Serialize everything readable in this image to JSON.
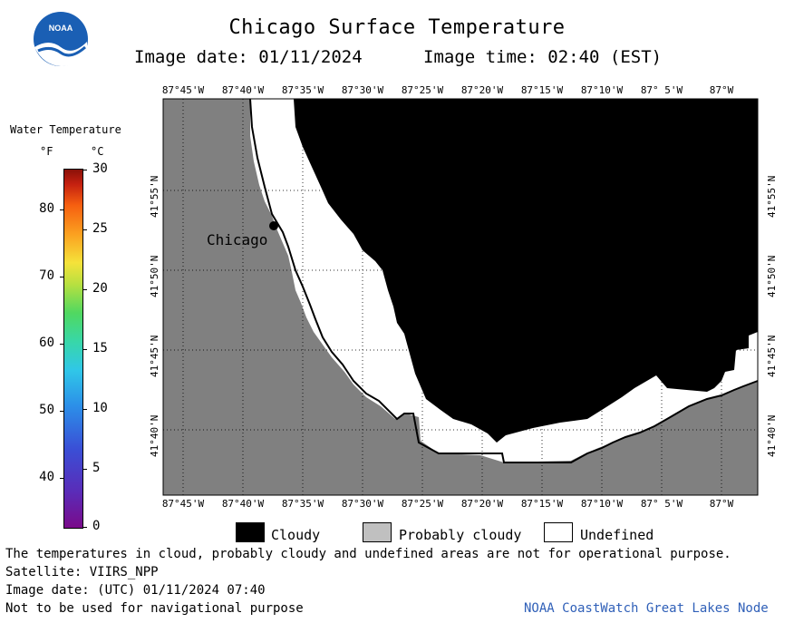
{
  "header": {
    "title": "Chicago Surface Temperature",
    "image_date": "Image date: 01/11/2024",
    "image_time": "Image time: 02:40 (EST)",
    "logo_text": "NOAA"
  },
  "map": {
    "city_label": "Chicago",
    "lon_labels": [
      "87°45'W",
      "87°40'W",
      "87°35'W",
      "87°30'W",
      "87°25'W",
      "87°20'W",
      "87°15'W",
      "87°10'W",
      "87° 5'W",
      "87°W"
    ],
    "lat_labels": [
      "41°55'N",
      "41°50'N",
      "41°45'N",
      "41°40'N"
    ],
    "colors": {
      "land": "#808080",
      "cloudy": "#000000",
      "undefined": "#ffffff",
      "probably_cloudy": "#c0c0c0"
    }
  },
  "legend": {
    "title": "Water Temperature",
    "unit_f": "°F",
    "unit_c": "°C",
    "f_ticks": [
      "80",
      "70",
      "60",
      "50",
      "40"
    ],
    "c_ticks": [
      "30",
      "25",
      "20",
      "15",
      "10",
      "5",
      "0"
    ]
  },
  "key": {
    "cloudy": "Cloudy",
    "probably_cloudy": "Probably cloudy",
    "undefined": "Undefined"
  },
  "footer": {
    "note": "The temperatures in cloud, probably cloudy and undefined areas are not for operational purpose.",
    "satellite": "Satellite: VIIRS_NPP",
    "utc_date": "Image date: (UTC) 01/11/2024  07:40",
    "nav_warning": "Not to be used for navigational purpose",
    "node": "NOAA CoastWatch Great Lakes Node"
  }
}
